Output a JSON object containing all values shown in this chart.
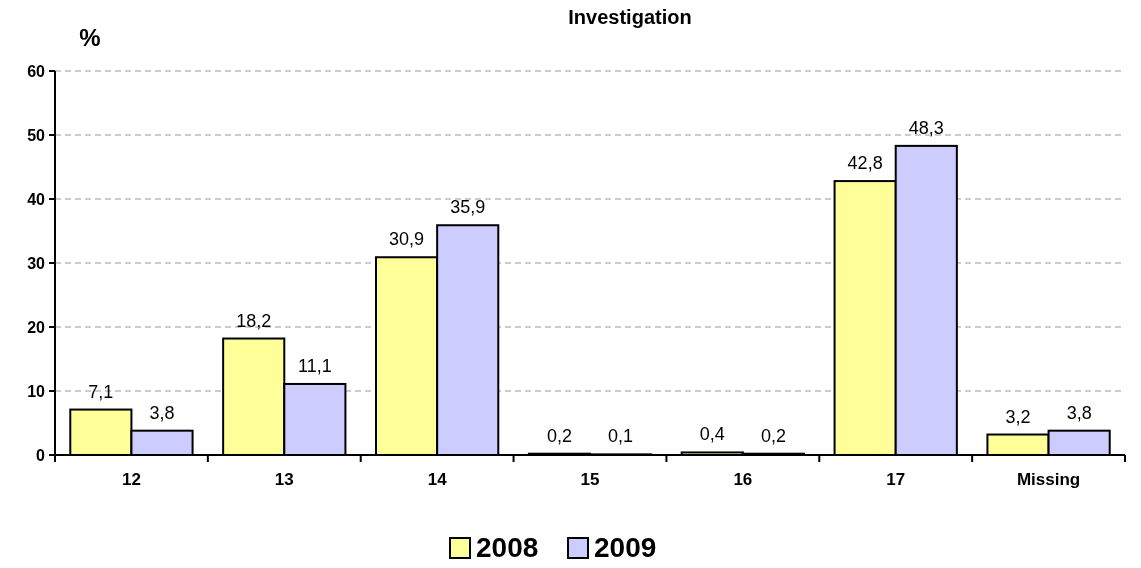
{
  "chart_data": {
    "type": "bar",
    "title": "Investigation",
    "ylabel": "%",
    "categories": [
      "12",
      "13",
      "14",
      "15",
      "16",
      "17",
      "Missing"
    ],
    "series": [
      {
        "name": "2008",
        "color": "#ffff99",
        "values": [
          7.1,
          18.2,
          30.9,
          0.2,
          0.4,
          42.8,
          3.2
        ],
        "value_labels": [
          "7,1",
          "18,2",
          "30,9",
          "0,2",
          "0,4",
          "42,8",
          "3,2"
        ]
      },
      {
        "name": "2009",
        "color": "#ccccff",
        "values": [
          3.8,
          11.1,
          35.9,
          0.1,
          0.2,
          48.3,
          3.8
        ],
        "value_labels": [
          "3,8",
          "11,1",
          "35,9",
          "0,1",
          "0,2",
          "48,3",
          "3,8"
        ]
      }
    ],
    "ylim": [
      0,
      60
    ],
    "yticks": [
      0,
      10,
      20,
      30,
      40,
      50,
      60
    ],
    "grid": "y",
    "legend": "bottom"
  }
}
